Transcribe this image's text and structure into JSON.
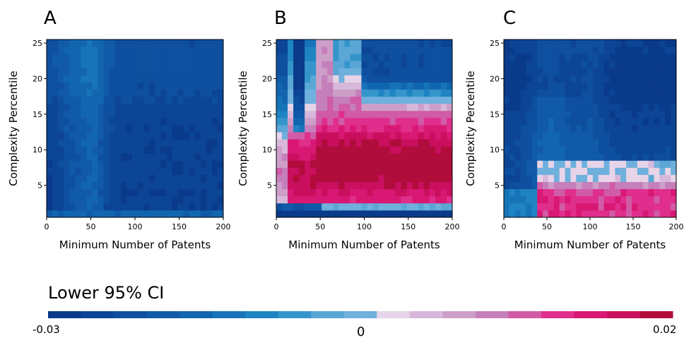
{
  "chart_data": [
    {
      "panel": "A",
      "type": "heatmap",
      "xlabel": "Minimum Number of Patents",
      "ylabel": "Complexity Percentile",
      "xlim": [
        0,
        200
      ],
      "ylim": [
        0.5,
        25.5
      ],
      "xticks": [
        "0",
        "50",
        "100",
        "150",
        "200"
      ],
      "yticks": [
        "5",
        "10",
        "15",
        "20",
        "25"
      ],
      "pattern": "A",
      "value_range": [
        -0.03,
        -0.015
      ],
      "description_of_values": "all negative: medium blue band at x 35-75, darker blue elsewhere, lighter blue row at percentile 1"
    },
    {
      "panel": "B",
      "type": "heatmap",
      "xlabel": "Minimum Number of Patents",
      "ylabel": "Complexity Percentile",
      "xlim": [
        0,
        200
      ],
      "ylim": [
        0.5,
        25.5
      ],
      "xticks": [
        "0",
        "50",
        "100",
        "150",
        "200"
      ],
      "yticks": [
        "5",
        "10",
        "15",
        "20",
        "25"
      ],
      "pattern": "B",
      "value_range": [
        -0.03,
        0.02
      ],
      "description_of_values": "mostly positive (pink/crimson) for percentiles 3-15 and x above 50; negative blue in top-right corner and bottom rows"
    },
    {
      "panel": "C",
      "type": "heatmap",
      "xlabel": "Minimum Number of Patents",
      "ylabel": "Complexity Percentile",
      "xlim": [
        0,
        200
      ],
      "ylim": [
        0.5,
        25.5
      ],
      "xticks": [
        "0",
        "50",
        "100",
        "150",
        "200"
      ],
      "yticks": [
        "5",
        "10",
        "15",
        "20",
        "25"
      ],
      "pattern": "C",
      "value_range": [
        -0.03,
        0.02
      ],
      "description_of_values": "mostly negative (blue) for upper percentiles; positive pink/crimson at percentiles 1-4 for x above 40"
    }
  ],
  "panel_letters": [
    "A",
    "B",
    "C"
  ],
  "colorbar": {
    "title": "Lower 95% CI",
    "min_label": "-0.03",
    "zero_label": "0",
    "max_label": "0.02",
    "min": -0.03,
    "max": 0.02,
    "colors": [
      "#0a3a8a",
      "#0c4596",
      "#0e4f9f",
      "#105aa8",
      "#1266b0",
      "#1774b8",
      "#1f84c2",
      "#3595cb",
      "#5aa7d6",
      "#6fb0dd",
      "#e7d4e8",
      "#d7b8da",
      "#cd9ec8",
      "#c57fba",
      "#d05ba6",
      "#e02e8d",
      "#d81873",
      "#c90f5e",
      "#b00c3c"
    ]
  },
  "colors": {
    "neg_dark": "#0a3a8a",
    "neg_light": "#6fb0dd",
    "neutral": "#e7d4e8",
    "pos_dark": "#b00c3c"
  }
}
